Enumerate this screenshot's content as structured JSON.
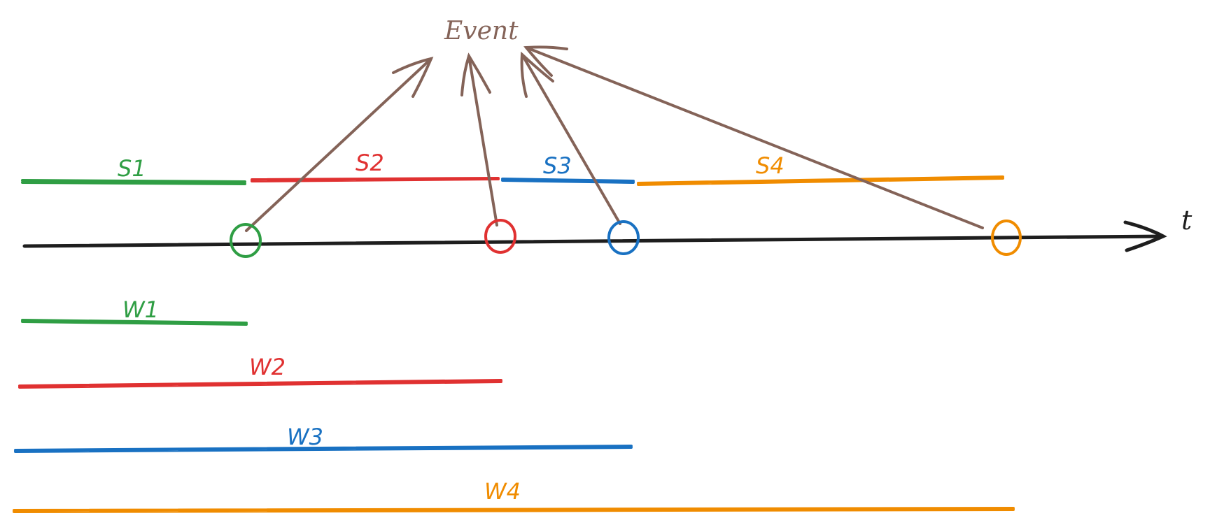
{
  "event_label": "Event",
  "time_axis_label": "t",
  "colors": {
    "green": "#2f9e44",
    "red": "#e03131",
    "blue": "#1971c2",
    "orange": "#f08c00",
    "brown": "#846358",
    "axis": "#1e1e1e"
  },
  "segments": [
    {
      "label": "S1",
      "color": "green"
    },
    {
      "label": "S2",
      "color": "red"
    },
    {
      "label": "S3",
      "color": "blue"
    },
    {
      "label": "S4",
      "color": "orange"
    }
  ],
  "windows": [
    {
      "label": "W1",
      "color": "green"
    },
    {
      "label": "W2",
      "color": "red"
    },
    {
      "label": "W3",
      "color": "blue"
    },
    {
      "label": "W4",
      "color": "orange"
    }
  ],
  "markers": [
    {
      "color": "green"
    },
    {
      "color": "red"
    },
    {
      "color": "blue"
    },
    {
      "color": "orange"
    }
  ]
}
